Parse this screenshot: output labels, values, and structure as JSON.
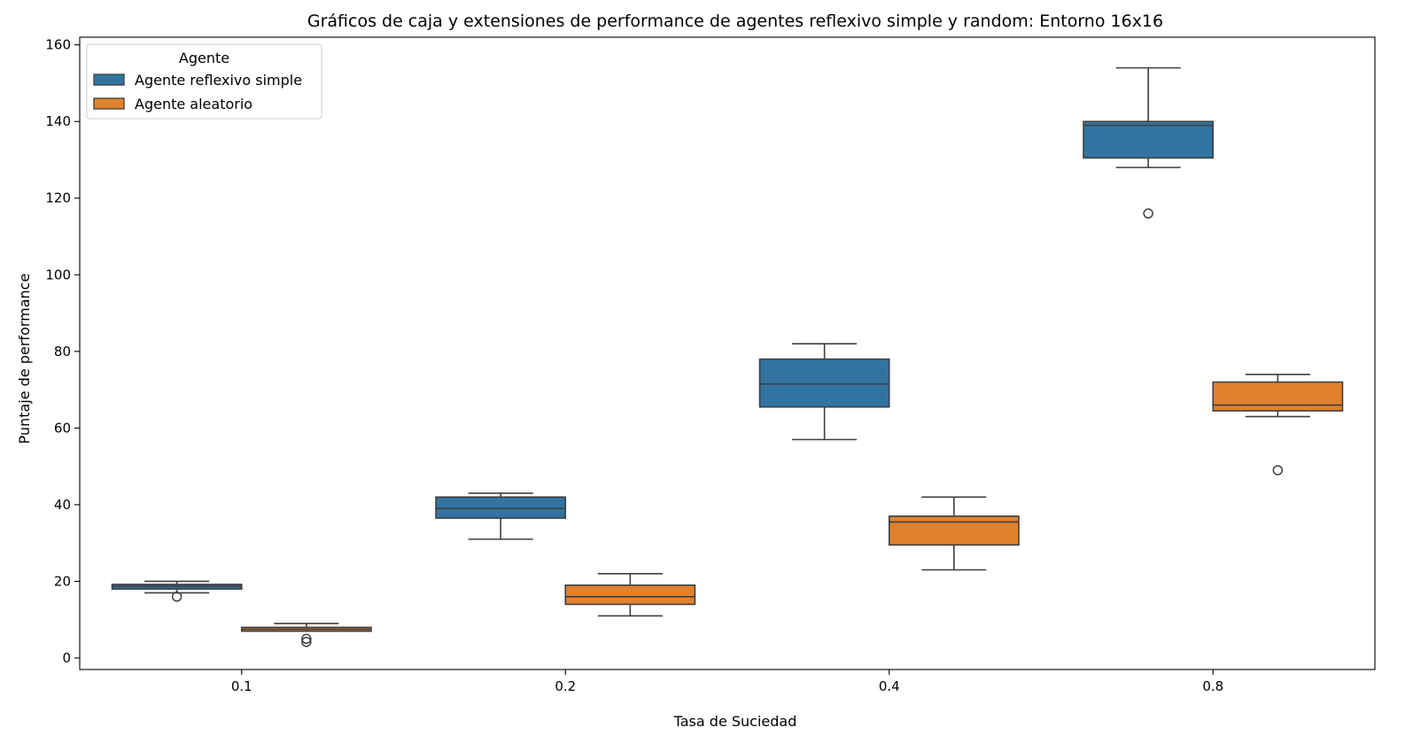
{
  "chart_data": {
    "type": "box",
    "title": "Gráficos de caja y extensiones de performance de agentes reflexivo simple y random: Entorno 16x16",
    "xlabel": "Tasa de Suciedad",
    "ylabel": "Puntaje de performance",
    "categories": [
      "0.1",
      "0.2",
      "0.4",
      "0.8"
    ],
    "ylim": [
      -3,
      162
    ],
    "yticks": [
      0,
      20,
      40,
      60,
      80,
      100,
      120,
      140,
      160
    ],
    "legend": {
      "title": "Agente",
      "placement": "top-left"
    },
    "series": [
      {
        "name": "Agente reflexivo simple",
        "color": "#3274a1",
        "boxes": [
          {
            "whislo": 17,
            "q1": 18,
            "med": 18.7,
            "q3": 19.2,
            "whishi": 20,
            "fliers": [
              16
            ]
          },
          {
            "whislo": 31,
            "q1": 36.5,
            "med": 39,
            "q3": 42,
            "whishi": 43,
            "fliers": []
          },
          {
            "whislo": 57,
            "q1": 65.5,
            "med": 71.5,
            "q3": 78,
            "whishi": 82,
            "fliers": []
          },
          {
            "whislo": 128,
            "q1": 130.5,
            "med": 139,
            "q3": 140,
            "whishi": 154,
            "fliers": [
              116
            ]
          }
        ]
      },
      {
        "name": "Agente aleatorio",
        "color": "#e1812c",
        "boxes": [
          {
            "whislo": 7,
            "q1": 7,
            "med": 7.5,
            "q3": 8,
            "whishi": 9,
            "fliers": [
              5,
              4.2
            ]
          },
          {
            "whislo": 11,
            "q1": 14,
            "med": 16,
            "q3": 19,
            "whishi": 22,
            "fliers": []
          },
          {
            "whislo": 23,
            "q1": 29.5,
            "med": 35.5,
            "q3": 37,
            "whishi": 42,
            "fliers": []
          },
          {
            "whislo": 63,
            "q1": 64.5,
            "med": 66,
            "q3": 72,
            "whishi": 74,
            "fliers": [
              49
            ]
          }
        ]
      }
    ]
  }
}
